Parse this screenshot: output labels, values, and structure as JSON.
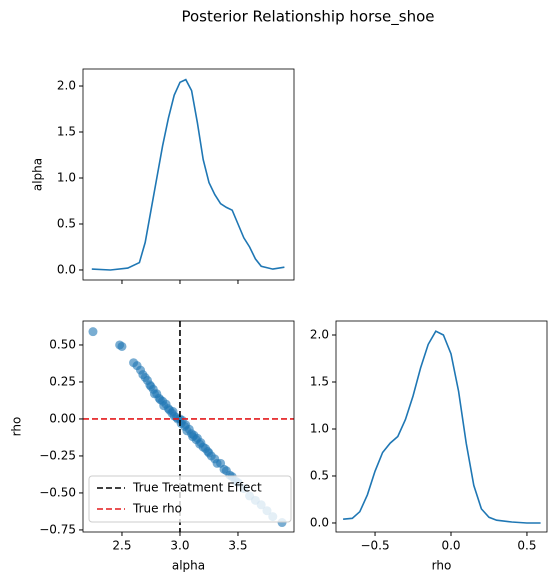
{
  "title": "Posterior Relationship horse_shoe",
  "chart_data": [
    {
      "type": "line",
      "ylabel": "alpha",
      "color": "#1f77b4",
      "x_tick_labels": false,
      "x": [
        2.24,
        2.4,
        2.55,
        2.65,
        2.7,
        2.75,
        2.8,
        2.85,
        2.9,
        2.95,
        3.0,
        3.05,
        3.1,
        3.15,
        3.2,
        3.25,
        3.3,
        3.35,
        3.4,
        3.45,
        3.5,
        3.55,
        3.6,
        3.65,
        3.7,
        3.8,
        3.9
      ],
      "values": [
        0.01,
        0.0,
        0.02,
        0.08,
        0.3,
        0.65,
        1.0,
        1.35,
        1.65,
        1.9,
        2.04,
        2.07,
        1.95,
        1.6,
        1.2,
        0.95,
        0.82,
        0.72,
        0.68,
        0.65,
        0.5,
        0.35,
        0.25,
        0.12,
        0.04,
        0.01,
        0.03
      ],
      "xlim": [
        2.164,
        3.983
      ],
      "ylim": [
        -0.109,
        2.185
      ],
      "xticks": [
        2.5,
        3,
        3.5
      ],
      "yticks": [
        {
          "value": 0,
          "label": "0.0"
        },
        {
          "value": 0.5,
          "label": "0.5"
        },
        {
          "value": 1,
          "label": "1.0"
        },
        {
          "value": 1.5,
          "label": "1.5"
        },
        {
          "value": 2,
          "label": "2.0"
        }
      ]
    },
    {
      "type": "scatter",
      "xlabel": "alpha",
      "ylabel": "rho",
      "color": "#1f77b4",
      "x_tick_labels": true,
      "legend": "lower left",
      "x": [
        2.25,
        2.48,
        2.5,
        2.6,
        2.63,
        2.66,
        2.68,
        2.7,
        2.72,
        2.74,
        2.75,
        2.77,
        2.78,
        2.8,
        2.82,
        2.83,
        2.85,
        2.86,
        2.88,
        2.9,
        2.91,
        2.93,
        2.94,
        2.95,
        2.97,
        2.98,
        3.0,
        3.01,
        3.02,
        3.04,
        3.05,
        3.06,
        3.08,
        3.1,
        3.11,
        3.12,
        3.14,
        3.15,
        3.17,
        3.18,
        3.2,
        3.22,
        3.24,
        3.25,
        3.27,
        3.3,
        3.32,
        3.35,
        3.38,
        3.4,
        3.43,
        3.45,
        3.48,
        3.5,
        3.55,
        3.6,
        3.65,
        3.7,
        3.75,
        3.8,
        3.88
      ],
      "values": [
        0.59,
        0.5,
        0.49,
        0.38,
        0.36,
        0.33,
        0.3,
        0.28,
        0.26,
        0.23,
        0.22,
        0.2,
        0.17,
        0.17,
        0.14,
        0.13,
        0.12,
        0.09,
        0.1,
        0.07,
        0.06,
        0.04,
        0.05,
        0.02,
        0.01,
        0.0,
        0.0,
        -0.03,
        -0.01,
        -0.05,
        -0.04,
        -0.08,
        -0.07,
        -0.1,
        -0.12,
        -0.11,
        -0.14,
        -0.13,
        -0.17,
        -0.16,
        -0.19,
        -0.2,
        -0.22,
        -0.23,
        -0.25,
        -0.27,
        -0.3,
        -0.3,
        -0.34,
        -0.35,
        -0.38,
        -0.39,
        -0.42,
        -0.43,
        -0.47,
        -0.52,
        -0.55,
        -0.58,
        -0.62,
        -0.66,
        -0.7
      ],
      "xlim": [
        2.164,
        3.983
      ],
      "ylim": [
        -0.764,
        0.662
      ],
      "xticks": [
        2.5,
        {
          "value": 3,
          "label": "3.0"
        },
        3.5
      ],
      "yticks": [
        {
          "value": -0.75,
          "label": "−0.75"
        },
        {
          "value": -0.5,
          "label": "−0.50"
        },
        {
          "value": -0.25,
          "label": "−0.25"
        },
        {
          "value": 0,
          "label": "0.00"
        },
        {
          "value": 0.25,
          "label": "0.25"
        },
        {
          "value": 0.5,
          "label": "0.50"
        }
      ],
      "reference_lines": [
        {
          "name": "True Treatment Effect",
          "axis": "x",
          "value": 3.0,
          "color": "#000000"
        },
        {
          "name": "True rho",
          "axis": "y",
          "value": 0.0,
          "color": "#e41a1c"
        }
      ]
    },
    {
      "type": "line",
      "xlabel": "rho",
      "color": "#1f77b4",
      "x_tick_labels": true,
      "x": [
        -0.71,
        -0.65,
        -0.6,
        -0.55,
        -0.5,
        -0.45,
        -0.4,
        -0.35,
        -0.3,
        -0.25,
        -0.2,
        -0.15,
        -0.1,
        -0.05,
        0.0,
        0.05,
        0.1,
        0.15,
        0.2,
        0.25,
        0.3,
        0.4,
        0.5,
        0.59
      ],
      "values": [
        0.04,
        0.05,
        0.12,
        0.3,
        0.55,
        0.75,
        0.85,
        0.92,
        1.1,
        1.35,
        1.65,
        1.9,
        2.04,
        2.0,
        1.8,
        1.4,
        0.85,
        0.4,
        0.15,
        0.06,
        0.03,
        0.01,
        0.0,
        0.0
      ],
      "xlim": [
        -0.757,
        0.632
      ],
      "ylim": [
        -0.096,
        2.149
      ],
      "xticks": [
        {
          "value": -0.5,
          "label": "−0.5"
        },
        {
          "value": 0,
          "label": "0.0"
        },
        {
          "value": 0.5,
          "label": "0.5"
        }
      ],
      "yticks": [
        {
          "value": 0,
          "label": "0.0"
        },
        {
          "value": 0.5,
          "label": "0.5"
        },
        {
          "value": 1,
          "label": "1.0"
        },
        {
          "value": 1.5,
          "label": "1.5"
        },
        {
          "value": 2,
          "label": "2.0"
        }
      ]
    }
  ]
}
